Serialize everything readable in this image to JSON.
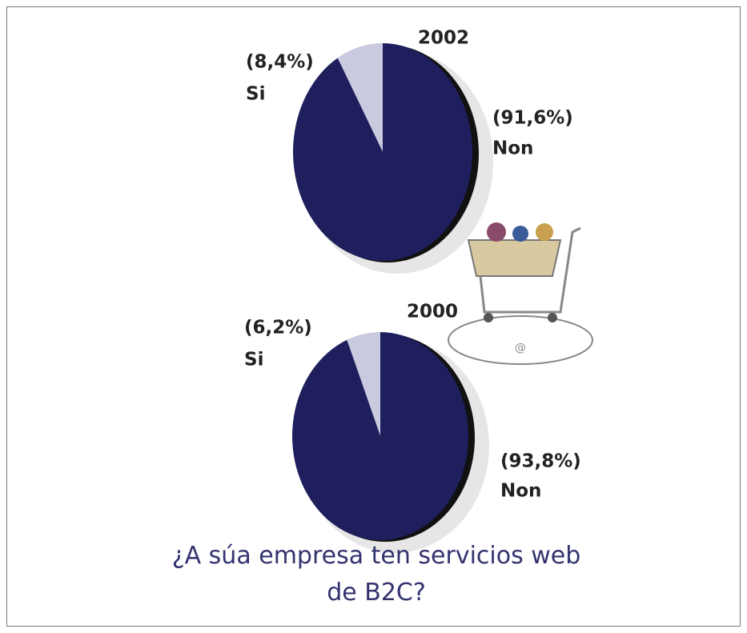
{
  "chart_data": [
    {
      "type": "pie",
      "title": "2002",
      "categories": [
        "Si",
        "Non"
      ],
      "values": [
        8.4,
        91.6
      ],
      "value_labels": [
        "(8,4%)",
        "(91,6%)"
      ],
      "colors": [
        "#c9c9df",
        "#1e1f5c"
      ]
    },
    {
      "type": "pie",
      "title": "2000",
      "categories": [
        "Si",
        "Non"
      ],
      "values": [
        6.2,
        93.8
      ],
      "value_labels": [
        "(6,2%)",
        "(93,8%)"
      ],
      "colors": [
        "#c9c9df",
        "#1e1f5c"
      ]
    }
  ],
  "caption": "¿A súa empresa ten servicios web de B2C?"
}
